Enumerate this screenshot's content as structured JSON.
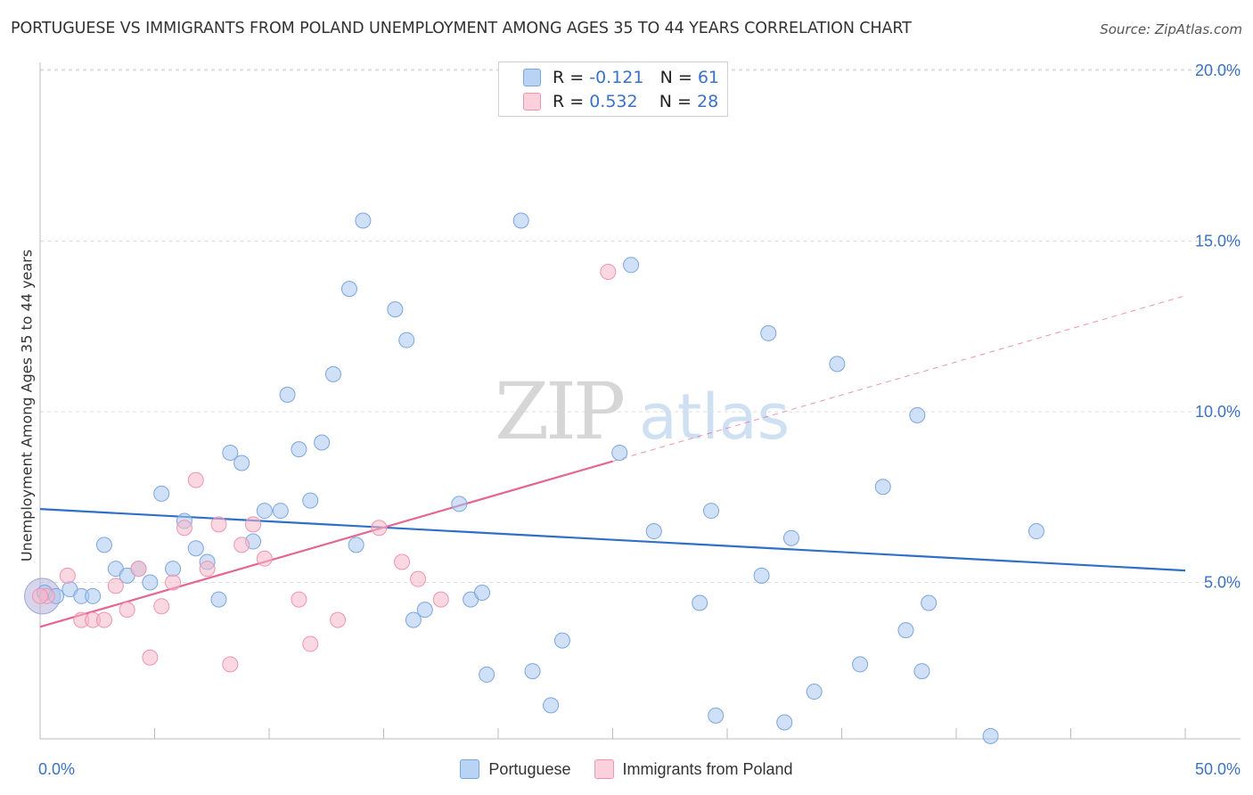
{
  "title": "PORTUGUESE VS IMMIGRANTS FROM POLAND UNEMPLOYMENT AMONG AGES 35 TO 44 YEARS CORRELATION CHART",
  "source": "Source: ZipAtlas.com",
  "watermark": {
    "zip": "ZIP",
    "atlas": "atlas"
  },
  "stats": {
    "r_label": "R =",
    "n_label": "N =",
    "portuguese": {
      "r": "-0.121",
      "n": "61"
    },
    "poland": {
      "r": "0.532",
      "n": "28"
    }
  },
  "colors": {
    "blue_fill": "#a9c8f0",
    "blue_stroke": "#7aa6de",
    "blue_line": "#2f6fc9",
    "pink_fill": "#f6b8cb",
    "pink_stroke": "#ee94b1",
    "pink_line": "#e36693",
    "axis_text": "#3a72c4",
    "grid": "#dddddd"
  },
  "chart_data": {
    "type": "scatter",
    "title": "PORTUGUESE VS IMMIGRANTS FROM POLAND UNEMPLOYMENT AMONG AGES 35 TO 44 YEARS CORRELATION CHART",
    "xlabel": "",
    "ylabel": "Unemployment Among Ages 35 to 44 years",
    "xlim": [
      0,
      50
    ],
    "ylim": [
      0,
      21
    ],
    "x_tick_labels": [
      "0.0%",
      "50.0%"
    ],
    "y_ticks": [
      5,
      10,
      15,
      20
    ],
    "y_tick_labels": [
      "5.0%",
      "10.0%",
      "15.0%",
      "20.0%"
    ],
    "legend": [
      "Portuguese",
      "Immigrants from Poland"
    ],
    "series": [
      {
        "name": "Portuguese",
        "trend": {
          "x": [
            0,
            50
          ],
          "y": [
            7.15,
            5.35
          ]
        },
        "points": [
          [
            0.2,
            4.7
          ],
          [
            0.7,
            4.6
          ],
          [
            1.3,
            4.8
          ],
          [
            1.8,
            4.6
          ],
          [
            2.3,
            4.6
          ],
          [
            2.8,
            6.1
          ],
          [
            3.3,
            5.4
          ],
          [
            3.8,
            5.2
          ],
          [
            4.3,
            5.4
          ],
          [
            4.8,
            5.0
          ],
          [
            5.3,
            7.6
          ],
          [
            5.8,
            5.4
          ],
          [
            6.3,
            6.8
          ],
          [
            6.8,
            6.0
          ],
          [
            7.3,
            5.6
          ],
          [
            7.8,
            4.5
          ],
          [
            8.3,
            8.8
          ],
          [
            8.8,
            8.5
          ],
          [
            9.3,
            6.2
          ],
          [
            9.8,
            7.1
          ],
          [
            10.5,
            7.1
          ],
          [
            10.8,
            10.5
          ],
          [
            11.3,
            8.9
          ],
          [
            11.8,
            7.4
          ],
          [
            12.3,
            9.1
          ],
          [
            12.8,
            11.1
          ],
          [
            13.5,
            13.6
          ],
          [
            13.8,
            6.1
          ],
          [
            14.1,
            15.6
          ],
          [
            15.5,
            13.0
          ],
          [
            16.0,
            12.1
          ],
          [
            16.3,
            3.9
          ],
          [
            16.8,
            4.2
          ],
          [
            18.3,
            7.3
          ],
          [
            18.8,
            4.5
          ],
          [
            19.3,
            4.7
          ],
          [
            19.5,
            2.3
          ],
          [
            21.0,
            15.6
          ],
          [
            21.5,
            2.4
          ],
          [
            22.3,
            1.4
          ],
          [
            22.8,
            3.3
          ],
          [
            25.3,
            8.8
          ],
          [
            25.8,
            14.3
          ],
          [
            26.8,
            6.5
          ],
          [
            28.8,
            4.4
          ],
          [
            29.3,
            7.1
          ],
          [
            29.5,
            1.1
          ],
          [
            31.5,
            5.2
          ],
          [
            31.8,
            12.3
          ],
          [
            32.5,
            0.9
          ],
          [
            32.8,
            6.3
          ],
          [
            33.8,
            1.8
          ],
          [
            34.8,
            11.4
          ],
          [
            35.8,
            2.6
          ],
          [
            36.8,
            7.8
          ],
          [
            37.8,
            3.6
          ],
          [
            38.3,
            9.9
          ],
          [
            38.5,
            2.4
          ],
          [
            38.8,
            4.4
          ],
          [
            41.5,
            0.5
          ],
          [
            43.5,
            6.5
          ]
        ]
      },
      {
        "name": "Immigrants from Poland",
        "trend": {
          "x": [
            0,
            50
          ],
          "y": [
            3.7,
            13.4
          ]
        },
        "trend_solid_until_x": 25,
        "points": [
          [
            0.3,
            4.6
          ],
          [
            1.2,
            5.2
          ],
          [
            1.8,
            3.9
          ],
          [
            2.3,
            3.9
          ],
          [
            2.8,
            3.9
          ],
          [
            3.3,
            4.9
          ],
          [
            3.8,
            4.2
          ],
          [
            4.3,
            5.4
          ],
          [
            4.8,
            2.8
          ],
          [
            5.3,
            4.3
          ],
          [
            5.8,
            5.0
          ],
          [
            6.3,
            6.6
          ],
          [
            6.8,
            8.0
          ],
          [
            7.3,
            5.4
          ],
          [
            7.8,
            6.7
          ],
          [
            8.3,
            2.6
          ],
          [
            8.8,
            6.1
          ],
          [
            9.3,
            6.7
          ],
          [
            9.8,
            5.7
          ],
          [
            11.3,
            4.5
          ],
          [
            11.8,
            3.2
          ],
          [
            13.0,
            3.9
          ],
          [
            14.8,
            6.6
          ],
          [
            15.8,
            5.6
          ],
          [
            16.5,
            5.1
          ],
          [
            17.5,
            4.5
          ],
          [
            24.8,
            14.1
          ],
          [
            0.0,
            4.6
          ]
        ]
      }
    ]
  },
  "legend_bottom": {
    "portuguese": "Portuguese",
    "poland": "Immigrants from Poland"
  }
}
